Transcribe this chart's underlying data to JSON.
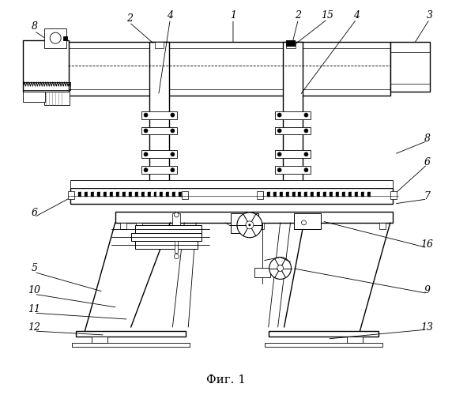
{
  "background_color": "#ffffff",
  "line_color": "#000000",
  "caption": "Фиг. 1",
  "caption_fontsize": 11,
  "label_fontsize": 9,
  "lw_thin": 0.6,
  "lw_med": 1.0,
  "lw_thick": 1.5
}
